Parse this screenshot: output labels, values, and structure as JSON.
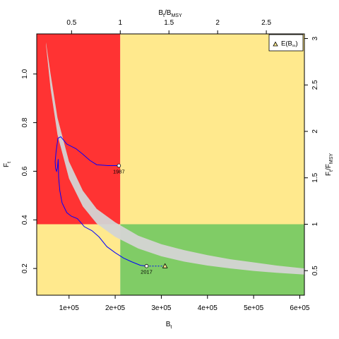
{
  "chart_data": {
    "type": "line",
    "axes": {
      "bottom": {
        "label": "B",
        "label_sub": "t",
        "lim": [
          30000,
          610000
        ],
        "ticks": [
          100000,
          200000,
          300000,
          400000,
          500000,
          600000
        ],
        "tick_labels": [
          "1e+05",
          "2e+05",
          "3e+05",
          "4e+05",
          "5e+05",
          "6e+05"
        ]
      },
      "left": {
        "label": "F",
        "label_sub": "t",
        "lim": [
          0.09,
          1.165
        ],
        "ticks": [
          0.2,
          0.4,
          0.6,
          0.8,
          1.0
        ],
        "tick_labels": [
          "0.2",
          "0.4",
          "0.6",
          "0.8",
          "1.0"
        ]
      },
      "top": {
        "label_main": "B",
        "label_sub": "t",
        "label_rest": "/B",
        "label_rest_sub": "MSY",
        "ticks": [
          0.5,
          1,
          1.5,
          2,
          2.5
        ],
        "tick_labels": [
          "0.5",
          "1",
          "1.5",
          "2",
          "2.5"
        ]
      },
      "right": {
        "label_main": "F",
        "label_sub": "t",
        "label_rest": "/F",
        "label_rest_sub": "MSY",
        "ticks": [
          0.5,
          1,
          1.5,
          2,
          2.5,
          3
        ],
        "tick_labels": [
          "0.5",
          "1",
          "1.5",
          "2",
          "2.5",
          "3"
        ]
      }
    },
    "reference": {
      "BMSY": 211000,
      "FMSY": 0.382
    },
    "zones": [
      {
        "name": "overfished-overfishing",
        "color": "#ff3333"
      },
      {
        "name": "caution",
        "color": "#ffe98d"
      },
      {
        "name": "sustainable",
        "color": "#80cc66"
      }
    ],
    "equilibrium_band": {
      "color": "#d4d4d4",
      "upper": [
        [
          50000,
          1.13
        ],
        [
          60000,
          1.0
        ],
        [
          75000,
          0.82
        ],
        [
          100000,
          0.64
        ],
        [
          130000,
          0.52
        ],
        [
          160000,
          0.445
        ],
        [
          200000,
          0.39
        ],
        [
          250000,
          0.335
        ],
        [
          300000,
          0.3
        ],
        [
          350000,
          0.275
        ],
        [
          400000,
          0.255
        ],
        [
          450000,
          0.238
        ],
        [
          500000,
          0.225
        ],
        [
          550000,
          0.212
        ],
        [
          610000,
          0.2
        ]
      ],
      "lower": [
        [
          50000,
          1.12
        ],
        [
          60000,
          0.94
        ],
        [
          75000,
          0.75
        ],
        [
          100000,
          0.57
        ],
        [
          130000,
          0.455
        ],
        [
          160000,
          0.385
        ],
        [
          200000,
          0.33
        ],
        [
          250000,
          0.282
        ],
        [
          300000,
          0.25
        ],
        [
          350000,
          0.228
        ],
        [
          400000,
          0.212
        ],
        [
          450000,
          0.2
        ],
        [
          500000,
          0.19
        ],
        [
          550000,
          0.182
        ],
        [
          610000,
          0.175
        ]
      ]
    },
    "trajectory": {
      "color": "#0000ff",
      "points": [
        [
          208000,
          0.623
        ],
        [
          185000,
          0.623
        ],
        [
          160000,
          0.627
        ],
        [
          145000,
          0.645
        ],
        [
          130000,
          0.67
        ],
        [
          115000,
          0.693
        ],
        [
          95000,
          0.712
        ],
        [
          82000,
          0.742
        ],
        [
          76000,
          0.736
        ],
        [
          74000,
          0.71
        ],
        [
          72000,
          0.68
        ],
        [
          70000,
          0.64
        ],
        [
          71000,
          0.61
        ],
        [
          73000,
          0.6
        ],
        [
          75000,
          0.615
        ],
        [
          76500,
          0.65
        ],
        [
          77000,
          0.615
        ],
        [
          77500,
          0.575
        ],
        [
          80000,
          0.52
        ],
        [
          85000,
          0.47
        ],
        [
          95000,
          0.43
        ],
        [
          105000,
          0.415
        ],
        [
          118000,
          0.405
        ],
        [
          125000,
          0.39
        ],
        [
          133000,
          0.372
        ],
        [
          150000,
          0.355
        ],
        [
          165000,
          0.33
        ],
        [
          182000,
          0.29
        ],
        [
          200000,
          0.265
        ],
        [
          218000,
          0.243
        ],
        [
          235000,
          0.228
        ],
        [
          255000,
          0.213
        ],
        [
          268000,
          0.21
        ]
      ],
      "projection": [
        [
          268000,
          0.21
        ],
        [
          308000,
          0.21
        ]
      ],
      "start": {
        "x": 208000,
        "y": 0.623,
        "label": "1987"
      },
      "end": {
        "x": 268000,
        "y": 0.21,
        "label": "2017"
      },
      "equilibrium": {
        "x": 308000,
        "y": 0.21
      }
    },
    "legend": {
      "position": "top-right",
      "marker": "triangle",
      "marker_color": "#ffe98d",
      "label_main": "E(B",
      "label_sub": "∞",
      "label_end": ")"
    }
  }
}
